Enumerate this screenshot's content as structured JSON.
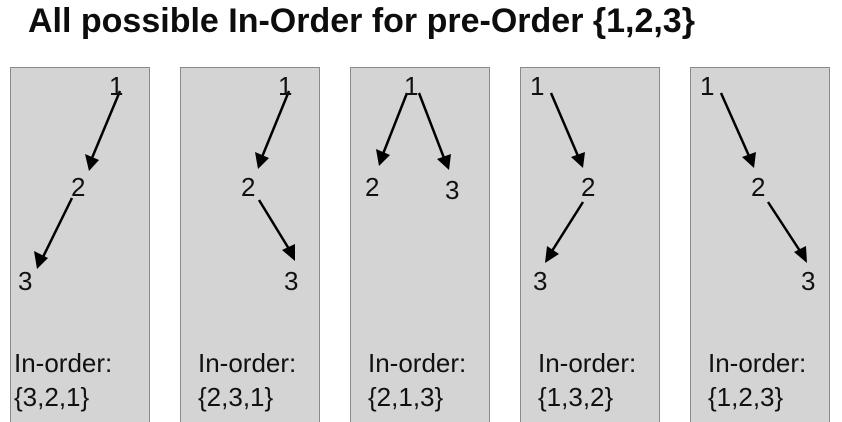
{
  "title": "All possible In-Order for pre-Order {1,2,3}",
  "colors": {
    "panel_fill": "#d4d4d4",
    "panel_border": "#8a8a8a",
    "text": "#111111",
    "arrow": "#000000"
  },
  "trees": [
    {
      "nodes": [
        "1",
        "2",
        "3"
      ],
      "edges": [
        [
          "1",
          "2"
        ],
        [
          "2",
          "3"
        ]
      ],
      "shape": "left-left",
      "inorder_label": "In-order:",
      "inorder": "{3,2,1}"
    },
    {
      "nodes": [
        "1",
        "2",
        "3"
      ],
      "edges": [
        [
          "1",
          "2"
        ],
        [
          "2",
          "3"
        ]
      ],
      "shape": "left-right",
      "inorder_label": "In-order:",
      "inorder": "{2,3,1}"
    },
    {
      "nodes": [
        "1",
        "2",
        "3"
      ],
      "edges": [
        [
          "1",
          "2"
        ],
        [
          "1",
          "3"
        ]
      ],
      "shape": "balanced",
      "inorder_label": "In-order:",
      "inorder": "{2,1,3}"
    },
    {
      "nodes": [
        "1",
        "2",
        "3"
      ],
      "edges": [
        [
          "1",
          "2"
        ],
        [
          "2",
          "3"
        ]
      ],
      "shape": "right-left",
      "inorder_label": "In-order:",
      "inorder": "{1,3,2}"
    },
    {
      "nodes": [
        "1",
        "2",
        "3"
      ],
      "edges": [
        [
          "1",
          "2"
        ],
        [
          "2",
          "3"
        ]
      ],
      "shape": "right-right",
      "inorder_label": "In-order:",
      "inorder": "{1,2,3}"
    }
  ]
}
